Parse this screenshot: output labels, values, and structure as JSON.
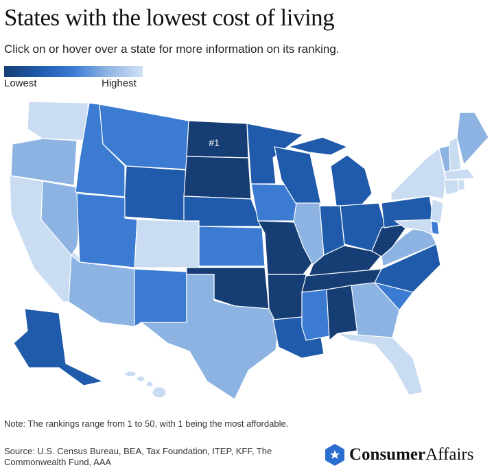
{
  "header": {
    "title": "States with the lowest cost of living",
    "subtitle": "Click on or hover over a state for more information on its ranking."
  },
  "legend": {
    "low_label": "Lowest",
    "high_label": "Highest",
    "gradient": [
      "#163e74",
      "#1f5aab",
      "#3a7bd5",
      "#8fb5e3",
      "#d0e1f4"
    ]
  },
  "map": {
    "highlight_label": "#1",
    "tier_colors": {
      "t1": "#163e74",
      "t2": "#1f5aab",
      "t3": "#3b7bd2",
      "t4": "#8db3e2",
      "t5": "#c9dcf2"
    },
    "states": {
      "WA": "t5",
      "OR": "t4",
      "CA": "t5",
      "NV": "t4",
      "ID": "t3",
      "MT": "t3",
      "WY": "t2",
      "UT": "t3",
      "CO": "t5",
      "AZ": "t4",
      "NM": "t3",
      "ND": "t1",
      "SD": "t1",
      "NE": "t2",
      "KS": "t3",
      "OK": "t1",
      "TX": "t4",
      "MN": "t2",
      "IA": "t3",
      "MO": "t1",
      "AR": "t1",
      "LA": "t2",
      "WI": "t2",
      "IL": "t4",
      "MI": "t2",
      "MI_UP": "t2",
      "IN": "t2",
      "OH": "t2",
      "KY": "t1",
      "TN": "t1",
      "MS": "t3",
      "AL": "t1",
      "GA": "t4",
      "FL": "t5",
      "SC": "t3",
      "NC": "t2",
      "VA": "t4",
      "WV": "t1",
      "PA": "t2",
      "NY": "t5",
      "NJ": "t5",
      "DE": "t3",
      "MD": "t5",
      "VT": "t4",
      "NH": "t5",
      "ME": "t4",
      "MA": "t5",
      "CT": "t5",
      "RI": "t5",
      "AK": "t2",
      "HI": "t5"
    }
  },
  "footer": {
    "note": "Note: The rankings range from 1 to 50, with 1 being the most affordable.",
    "source": "Source: U.S. Census Bureau, BEA, Tax Foundation, ITEP, KFF, The Commonwealth Fund, AAA",
    "logo_bold": "Consumer",
    "logo_light": "Affairs"
  }
}
